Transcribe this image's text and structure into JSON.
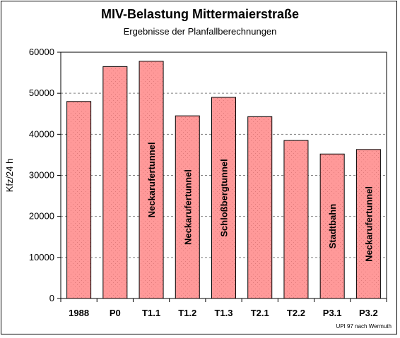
{
  "chart_data": {
    "type": "bar",
    "title": "MIV-Belastung Mittermaierstraße",
    "subtitle": "Ergebnisse der Planfallberechnungen",
    "xlabel": "",
    "ylabel": "Kfz/24 h",
    "ylim": [
      0,
      60000
    ],
    "yticks": [
      0,
      10000,
      20000,
      30000,
      40000,
      50000,
      60000
    ],
    "grid": true,
    "categories": [
      "1988",
      "P0",
      "T1.1",
      "T1.2",
      "T1.3",
      "T2.1",
      "T2.2",
      "P3.1",
      "P3.2"
    ],
    "values": [
      48000,
      56500,
      57800,
      44500,
      49000,
      44300,
      38500,
      35200,
      36300
    ],
    "bar_labels": [
      "",
      "",
      "Neckarufertunnel",
      "Neckarufertunnel",
      "Schloßbergtunnel",
      "",
      "",
      "Stadtbahn",
      "Neckarufertunnel"
    ],
    "bar_color": "#ff9999",
    "grid_color": "#808080"
  },
  "credit": "UPI 97 nach Wermuth"
}
